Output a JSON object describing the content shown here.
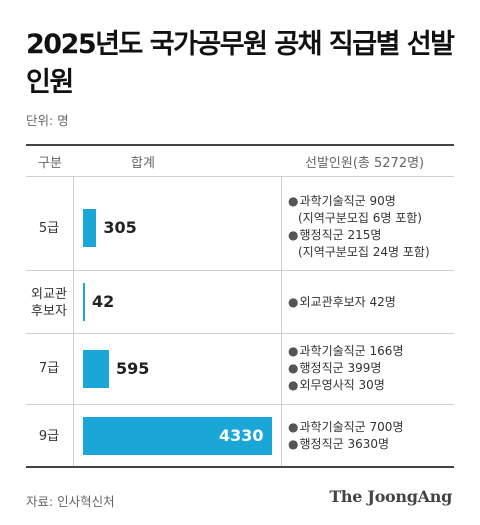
{
  "title": "2025년도 국가공무원 공채 직급별 선발인원",
  "unit": "단위: 명",
  "columns": {
    "category": "구분",
    "total": "합계",
    "breakdown": "선발인원(총 5272명)"
  },
  "source": "자료: 인사혁신처",
  "logo": "The JoongAng",
  "colors": {
    "bar": "#1aa7d8"
  },
  "chart_data": {
    "type": "bar",
    "orientation": "horizontal",
    "categories": [
      "5급",
      "외교관 후보자",
      "7급",
      "9급"
    ],
    "values": [
      305,
      42,
      595,
      4330
    ],
    "xlim": [
      0,
      4330
    ],
    "grid": false,
    "title": "2025년도 국가공무원 공채 직급별 선발인원"
  },
  "rows": [
    {
      "label": "5급",
      "value": "305",
      "notes": [
        "과학기술직군 90명",
        "(지역구분모집 6명 포함)",
        "행정직군 215명",
        "(지역구분모집 24명 포함)"
      ],
      "bullets": [
        true,
        false,
        true,
        false
      ]
    },
    {
      "label": "외교관 후보자",
      "label_lines": [
        "외교관",
        "후보자"
      ],
      "value": "42",
      "notes": [
        "외교관후보자 42명"
      ],
      "bullets": [
        true
      ]
    },
    {
      "label": "7급",
      "value": "595",
      "notes": [
        "과학기술직군 166명",
        "행정직군 399명",
        "외무영사직 30명"
      ],
      "bullets": [
        true,
        true,
        true
      ]
    },
    {
      "label": "9급",
      "value": "4330",
      "notes": [
        "과학기술직군 700명",
        "행정직군 3630명"
      ],
      "bullets": [
        true,
        true
      ]
    }
  ]
}
